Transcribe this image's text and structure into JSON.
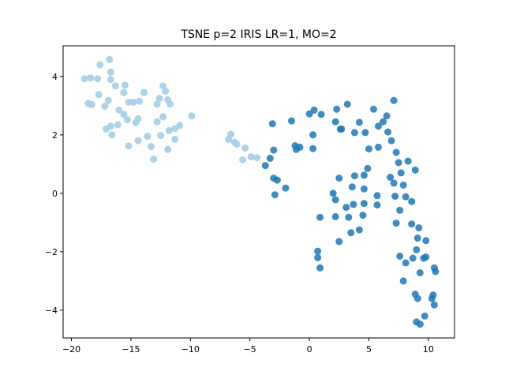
{
  "chart_data": {
    "type": "scatter",
    "title": "TSNE p=2 IRIS LR=1, MO=2",
    "xlabel": "",
    "ylabel": "",
    "xlim": [
      -20.7,
      12.2
    ],
    "ylim": [
      -4.95,
      5.05
    ],
    "xticks": [
      -20,
      -15,
      -10,
      -5,
      0,
      5,
      10
    ],
    "yticks": [
      -4,
      -2,
      0,
      2,
      4
    ],
    "grid": false,
    "legend": "none",
    "colors": {
      "series_a": "#a6cee3",
      "series_b": "#1f78b4"
    },
    "series": [
      {
        "color": "#a6cee3",
        "points": [
          [
            -18.9,
            3.92
          ],
          [
            -18.4,
            3.95
          ],
          [
            -17.8,
            3.92
          ],
          [
            -17.6,
            4.4
          ],
          [
            -16.8,
            4.58
          ],
          [
            -16.7,
            4.15
          ],
          [
            -16.7,
            3.9
          ],
          [
            -16.3,
            3.68
          ],
          [
            -15.5,
            3.7
          ],
          [
            -18.6,
            3.08
          ],
          [
            -18.3,
            3.04
          ],
          [
            -17.7,
            3.38
          ],
          [
            -17.2,
            2.98
          ],
          [
            -16.9,
            3.18
          ],
          [
            -16.0,
            2.85
          ],
          [
            -15.6,
            3.45
          ],
          [
            -15.2,
            3.12
          ],
          [
            -14.8,
            3.12
          ],
          [
            -14.3,
            3.15
          ],
          [
            -13.9,
            3.45
          ],
          [
            -12.8,
            3.05
          ],
          [
            -12.6,
            3.25
          ],
          [
            -12.3,
            3.68
          ],
          [
            -12.1,
            3.5
          ],
          [
            -11.9,
            3.2
          ],
          [
            -11.7,
            3.05
          ],
          [
            -15.6,
            2.7
          ],
          [
            -15.3,
            2.52
          ],
          [
            -14.4,
            2.55
          ],
          [
            -14.6,
            2.42
          ],
          [
            -16.1,
            2.35
          ],
          [
            -17.1,
            2.2
          ],
          [
            -16.7,
            2.3
          ],
          [
            -16.6,
            2.0
          ],
          [
            -12.3,
            2.62
          ],
          [
            -12.8,
            2.45
          ],
          [
            -11.3,
            2.22
          ],
          [
            -10.9,
            2.32
          ],
          [
            -9.9,
            2.65
          ],
          [
            -11.8,
            2.15
          ],
          [
            -13.6,
            1.95
          ],
          [
            -12.5,
            1.98
          ],
          [
            -11.3,
            1.85
          ],
          [
            -14.4,
            1.8
          ],
          [
            -15.2,
            1.62
          ],
          [
            -13.3,
            1.6
          ],
          [
            -11.9,
            1.5
          ],
          [
            -13.1,
            1.17
          ],
          [
            -6.8,
            1.85
          ],
          [
            -6.6,
            2.02
          ],
          [
            -6.3,
            1.75
          ],
          [
            -6.1,
            1.68
          ],
          [
            -5.4,
            1.55
          ],
          [
            -5.6,
            1.15
          ],
          [
            -4.9,
            1.25
          ],
          [
            -4.4,
            1.22
          ]
        ]
      },
      {
        "color": "#1f78b4",
        "points": [
          [
            0.0,
            2.72
          ],
          [
            0.4,
            2.85
          ],
          [
            1.0,
            2.7
          ],
          [
            2.3,
            2.88
          ],
          [
            3.2,
            3.05
          ],
          [
            5.4,
            2.88
          ],
          [
            7.1,
            3.18
          ],
          [
            -3.1,
            2.38
          ],
          [
            -1.5,
            2.48
          ],
          [
            0.3,
            2.0
          ],
          [
            2.2,
            2.45
          ],
          [
            2.6,
            2.2
          ],
          [
            2.7,
            2.2
          ],
          [
            3.8,
            2.08
          ],
          [
            4.2,
            2.43
          ],
          [
            4.7,
            2.08
          ],
          [
            5.8,
            2.3
          ],
          [
            6.2,
            2.45
          ],
          [
            6.5,
            2.65
          ],
          [
            6.6,
            2.1
          ],
          [
            6.9,
            1.8
          ],
          [
            -1.2,
            1.63
          ],
          [
            -1.1,
            1.5
          ],
          [
            -0.8,
            1.58
          ],
          [
            0.3,
            1.53
          ],
          [
            -3.0,
            1.48
          ],
          [
            -3.3,
            1.2
          ],
          [
            -3.7,
            0.95
          ],
          [
            -3.0,
            0.52
          ],
          [
            -2.7,
            0.45
          ],
          [
            -2.0,
            0.18
          ],
          [
            -2.9,
            -0.05
          ],
          [
            5.0,
            1.52
          ],
          [
            5.8,
            1.58
          ],
          [
            7.3,
            1.4
          ],
          [
            8.3,
            1.1
          ],
          [
            7.5,
            1.05
          ],
          [
            4.9,
            0.85
          ],
          [
            4.6,
            0.62
          ],
          [
            3.8,
            0.6
          ],
          [
            2.5,
            0.52
          ],
          [
            3.6,
            0.22
          ],
          [
            4.6,
            0.15
          ],
          [
            2.0,
            0.0
          ],
          [
            6.8,
            0.55
          ],
          [
            7.7,
            0.7
          ],
          [
            7.1,
            0.35
          ],
          [
            7.9,
            0.28
          ],
          [
            8.9,
            0.8
          ],
          [
            7.2,
            -0.1
          ],
          [
            8.1,
            -0.12
          ],
          [
            8.6,
            -0.28
          ],
          [
            5.7,
            -0.08
          ],
          [
            5.7,
            -0.4
          ],
          [
            2.2,
            -0.22
          ],
          [
            3.1,
            -0.48
          ],
          [
            3.7,
            -0.38
          ],
          [
            4.6,
            -0.35
          ],
          [
            4.5,
            -0.75
          ],
          [
            3.3,
            -0.82
          ],
          [
            2.2,
            -0.8
          ],
          [
            0.9,
            -0.82
          ],
          [
            7.6,
            -0.58
          ],
          [
            7.3,
            -1.02
          ],
          [
            8.6,
            -1.05
          ],
          [
            9.2,
            -1.18
          ],
          [
            9.1,
            -1.53
          ],
          [
            9.8,
            -1.62
          ],
          [
            4.2,
            -1.25
          ],
          [
            3.5,
            -1.35
          ],
          [
            2.5,
            -1.65
          ],
          [
            0.7,
            -1.98
          ],
          [
            0.7,
            -2.2
          ],
          [
            0.9,
            -2.55
          ],
          [
            7.6,
            -2.15
          ],
          [
            8.7,
            -2.22
          ],
          [
            8.1,
            -2.38
          ],
          [
            9.0,
            -1.93
          ],
          [
            9.6,
            -2.22
          ],
          [
            9.8,
            -2.18
          ],
          [
            9.3,
            -2.72
          ],
          [
            7.9,
            -3.0
          ],
          [
            10.5,
            -2.55
          ],
          [
            10.6,
            -2.68
          ],
          [
            8.9,
            -3.45
          ],
          [
            9.1,
            -3.6
          ],
          [
            10.3,
            -3.6
          ],
          [
            10.4,
            -3.48
          ],
          [
            10.5,
            -3.82
          ],
          [
            9.7,
            -4.2
          ],
          [
            9.0,
            -4.4
          ],
          [
            9.3,
            -4.48
          ]
        ]
      }
    ]
  }
}
